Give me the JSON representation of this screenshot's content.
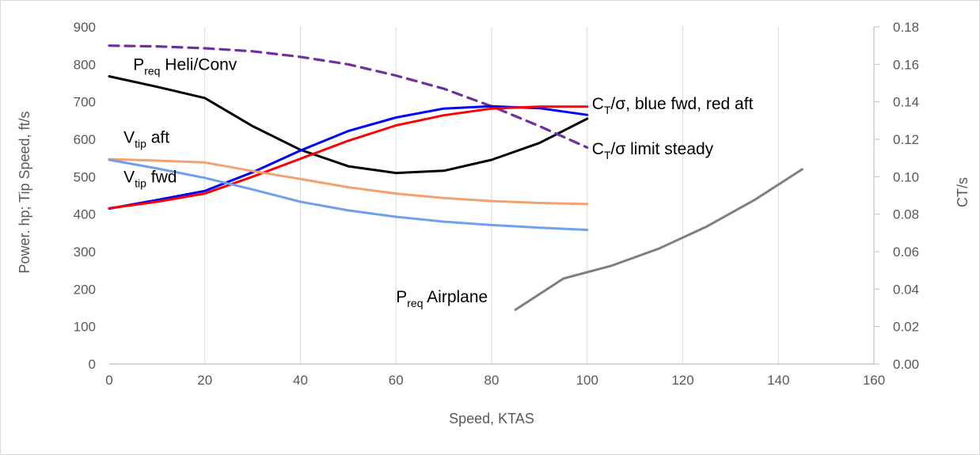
{
  "chart_data": {
    "type": "line",
    "xlabel": "Speed, KTAS",
    "ylabel_left": "Power. hp; Tip Speed, ft/s",
    "ylabel_right": "CT/s",
    "xlim": [
      0,
      160
    ],
    "ylim_left": [
      0,
      900
    ],
    "ylim_right": [
      0,
      0.18
    ],
    "x_ticks": [
      "0",
      "20",
      "40",
      "60",
      "80",
      "100",
      "120",
      "140",
      "160"
    ],
    "y_ticks_left": [
      "0",
      "100",
      "200",
      "300",
      "400",
      "500",
      "600",
      "700",
      "800",
      "900"
    ],
    "y_ticks_right": [
      "0.00",
      "0.02",
      "0.04",
      "0.06",
      "0.08",
      "0.10",
      "0.12",
      "0.14",
      "0.16",
      "0.18"
    ],
    "grid": "vertical",
    "series": [
      {
        "key": "preq_heli",
        "axis": "left",
        "color": "#000000",
        "dash": false,
        "x": [
          0,
          10,
          20,
          30,
          40,
          50,
          60,
          70,
          80,
          90,
          100
        ],
        "y": [
          768,
          740,
          710,
          635,
          572,
          528,
          510,
          516,
          545,
          590,
          655
        ]
      },
      {
        "key": "ct_limit",
        "axis": "left",
        "color": "#7030A0",
        "dash": true,
        "x": [
          0,
          10,
          20,
          30,
          40,
          50,
          60,
          70,
          80,
          90,
          100
        ],
        "y": [
          850,
          848,
          843,
          835,
          820,
          800,
          770,
          735,
          688,
          635,
          578
        ]
      },
      {
        "key": "ct_blue_fwd",
        "axis": "left",
        "color": "#0000FF",
        "dash": false,
        "x": [
          0,
          10,
          20,
          30,
          40,
          50,
          60,
          70,
          80,
          90,
          100
        ],
        "y": [
          415,
          438,
          462,
          512,
          570,
          622,
          658,
          682,
          688,
          683,
          665
        ]
      },
      {
        "key": "ct_red_aft",
        "axis": "left",
        "color": "#FF0000",
        "dash": false,
        "x": [
          0,
          10,
          20,
          30,
          40,
          50,
          60,
          70,
          80,
          90,
          100
        ],
        "y": [
          416,
          433,
          455,
          500,
          548,
          596,
          637,
          664,
          682,
          687,
          687
        ]
      },
      {
        "key": "vtip_aft",
        "axis": "left",
        "color": "#F4A070",
        "dash": false,
        "x": [
          0,
          10,
          20,
          30,
          40,
          50,
          60,
          70,
          80,
          90,
          100
        ],
        "y": [
          547,
          543,
          538,
          515,
          494,
          472,
          455,
          443,
          435,
          430,
          427
        ]
      },
      {
        "key": "vtip_fwd",
        "axis": "left",
        "color": "#6FA0F0",
        "dash": false,
        "x": [
          0,
          10,
          20,
          30,
          40,
          50,
          60,
          70,
          80,
          90,
          100
        ],
        "y": [
          545,
          522,
          497,
          466,
          433,
          410,
          393,
          380,
          371,
          364,
          358
        ]
      },
      {
        "key": "preq_airplane",
        "axis": "left",
        "color": "#7F7F7F",
        "dash": false,
        "x": [
          85,
          95,
          100,
          105,
          115,
          125,
          135,
          145
        ],
        "y": [
          145,
          228,
          245,
          262,
          308,
          367,
          438,
          520
        ]
      }
    ],
    "annotations": [
      {
        "key": "preq_heli",
        "main": "P",
        "sub": "req",
        "rest": " Heli/Conv",
        "x": 5,
        "y": 785
      },
      {
        "key": "vtip_aft",
        "main": "V",
        "sub": "tip",
        "rest": " aft",
        "x": 3,
        "y": 590
      },
      {
        "key": "vtip_fwd",
        "main": "V",
        "sub": "tip",
        "rest": " fwd",
        "x": 3,
        "y": 485
      },
      {
        "key": "ct_fwd_aft",
        "main": "C",
        "sub": "T",
        "rest": "/σ, blue fwd, red aft",
        "x": 101,
        "y": 680
      },
      {
        "key": "ct_limit",
        "main": "C",
        "sub": "T",
        "rest": "/σ limit steady",
        "x": 101,
        "y": 560
      },
      {
        "key": "preq_airplane",
        "main": "P",
        "sub": "req",
        "rest": " Airplane",
        "x": 60,
        "y": 165
      }
    ]
  }
}
